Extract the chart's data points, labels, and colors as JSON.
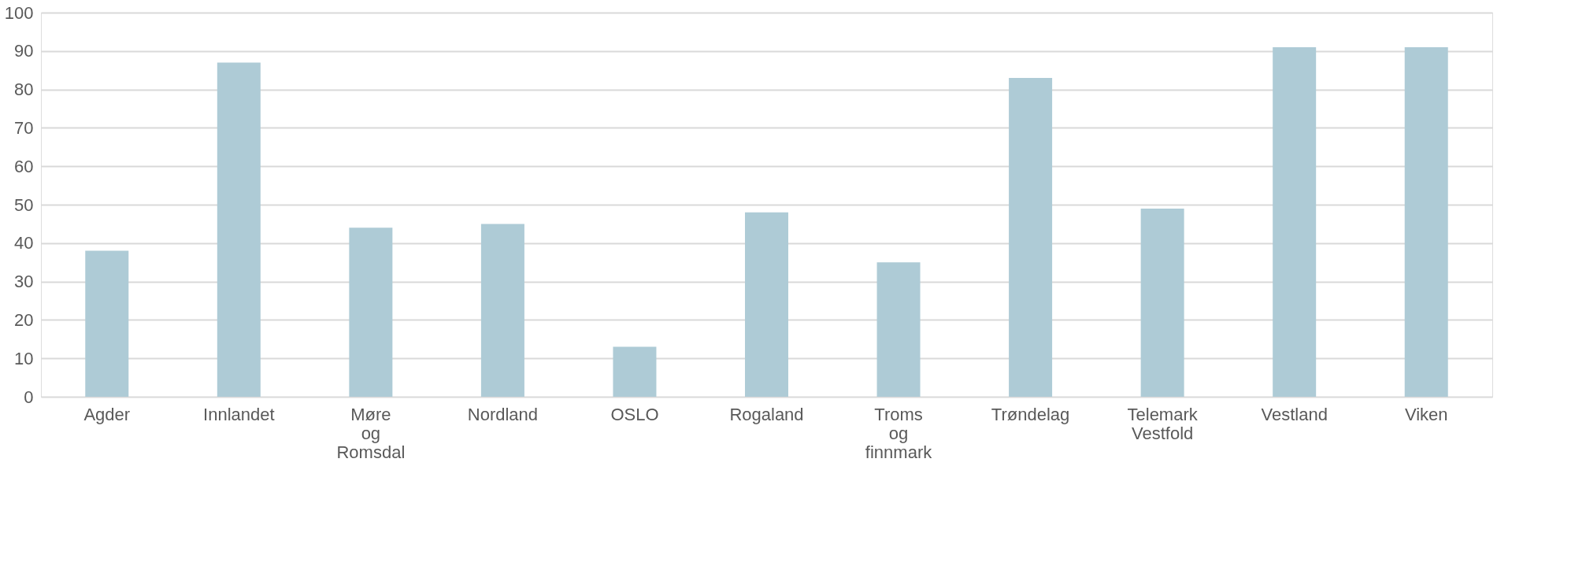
{
  "chart_data": {
    "type": "bar",
    "categories": [
      "Agder",
      "Innlandet",
      "Møre og Romsdal",
      "Nordland",
      "OSLO",
      "Rogaland",
      "Troms og finnmark",
      "Trøndelag",
      "Telemark Vestfold",
      "Vestland",
      "Viken"
    ],
    "values": [
      38,
      87,
      44,
      45,
      13,
      48,
      35,
      83,
      49,
      91,
      91
    ],
    "color": "#aecbd6",
    "ylim": [
      0,
      100
    ],
    "yticks": [
      0,
      10,
      20,
      30,
      40,
      50,
      60,
      70,
      80,
      90,
      100
    ],
    "grid": "y"
  }
}
